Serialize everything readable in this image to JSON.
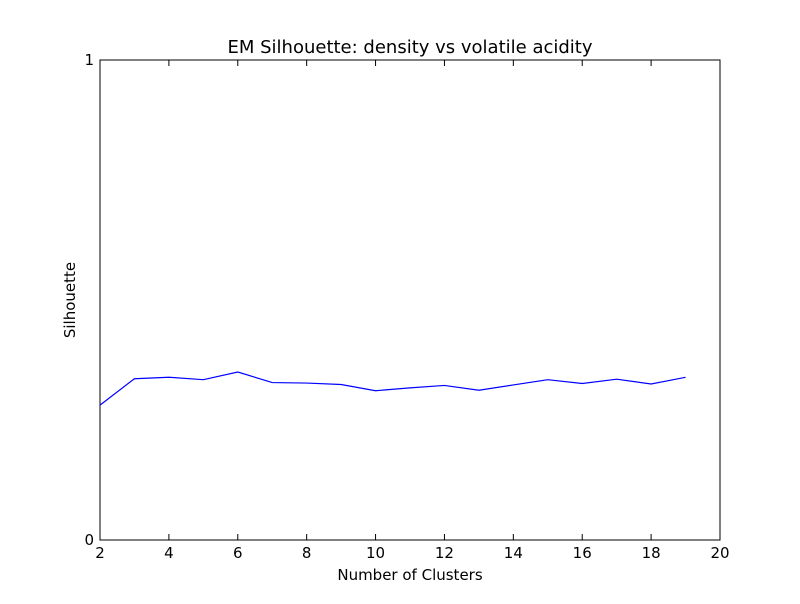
{
  "chart_data": {
    "type": "line",
    "title": "EM Silhouette: density vs volatile acidity",
    "xlabel": "Number of Clusters",
    "ylabel": "Silhouette",
    "xlim": [
      2,
      20
    ],
    "ylim": [
      0,
      1
    ],
    "x_ticks": [
      2,
      4,
      6,
      8,
      10,
      12,
      14,
      16,
      18,
      20
    ],
    "y_ticks": [
      0,
      1
    ],
    "grid": false,
    "legend": "none",
    "series": [
      {
        "color": "#0000ff",
        "x": [
          2,
          3,
          4,
          5,
          6,
          7,
          8,
          9,
          10,
          11,
          12,
          13,
          14,
          15,
          16,
          17,
          18,
          19
        ],
        "y": [
          0.281,
          0.336,
          0.339,
          0.334,
          0.35,
          0.328,
          0.327,
          0.324,
          0.311,
          0.317,
          0.322,
          0.312,
          0.323,
          0.334,
          0.326,
          0.335,
          0.325,
          0.339
        ]
      }
    ]
  }
}
